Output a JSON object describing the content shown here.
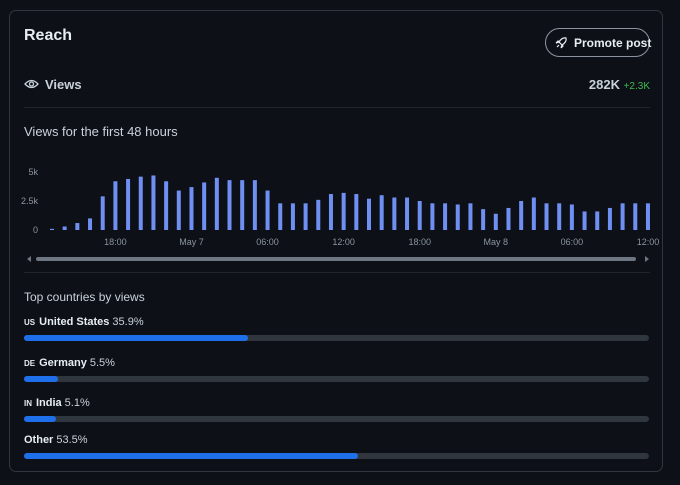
{
  "header": {
    "title": "Reach",
    "button": "Promote post"
  },
  "views": {
    "label": "Views",
    "total": "282K",
    "change": "+2.3K"
  },
  "chart_data": {
    "type": "bar",
    "title": "Views for the first 48 hours",
    "categories": [
      null,
      null,
      null,
      null,
      null,
      "18:00",
      null,
      null,
      null,
      null,
      null,
      "May 7",
      null,
      null,
      null,
      null,
      null,
      "06:00",
      null,
      null,
      null,
      null,
      null,
      "12:00",
      null,
      null,
      null,
      null,
      null,
      "18:00",
      null,
      null,
      null,
      null,
      null,
      "May 8",
      null,
      null,
      null,
      null,
      null,
      "06:00",
      null,
      null,
      null,
      null,
      null,
      "12:00"
    ],
    "values": [
      100,
      300,
      600,
      1000,
      2900,
      4200,
      4400,
      4600,
      4700,
      4200,
      3400,
      3700,
      4100,
      4500,
      4300,
      4300,
      4300,
      3400,
      2300,
      2300,
      2300,
      2600,
      3100,
      3200,
      3100,
      2700,
      3000,
      2800,
      2800,
      2500,
      2300,
      2300,
      2200,
      2300,
      1800,
      1400,
      1900,
      2500,
      2800,
      2300,
      2300,
      2200,
      1600,
      1600,
      1900,
      2300,
      2300,
      2300
    ],
    "color": "#6f8ff2",
    "ylim": [
      0,
      5000
    ],
    "yticks": [
      0,
      {
        "value": 2500,
        "label": "2.5k"
      },
      {
        "value": 5000,
        "label": "5k"
      }
    ]
  },
  "countries": {
    "title": "Top countries by views",
    "rows": [
      {
        "code": "US",
        "name": "United States",
        "value": 35.9,
        "value_label": "35.9%"
      },
      {
        "code": "DE",
        "name": "Germany",
        "value": 5.5,
        "value_label": "5.5%"
      },
      {
        "code": "IN",
        "name": "India",
        "value": 5.1,
        "value_label": "5.1%"
      },
      {
        "name": "Other",
        "value": 53.5,
        "value_label": "53.5%"
      }
    ]
  }
}
